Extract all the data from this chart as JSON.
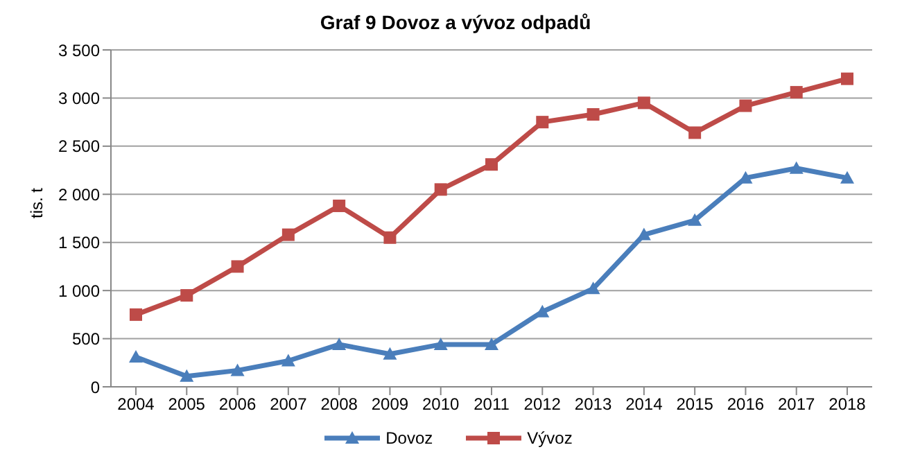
{
  "chart_data": {
    "type": "line",
    "title": "Graf 9 Dovoz a vývoz odpadů",
    "ylabel": "tis. t",
    "categories": [
      "2004",
      "2005",
      "2006",
      "2007",
      "2008",
      "2009",
      "2010",
      "2011",
      "2012",
      "2013",
      "2014",
      "2015",
      "2016",
      "2017",
      "2018"
    ],
    "series": [
      {
        "name": "Dovoz",
        "color": "#4a7ebb",
        "marker": "triangle",
        "values": [
          310,
          110,
          170,
          270,
          440,
          340,
          440,
          440,
          780,
          1020,
          1580,
          1730,
          2170,
          2270,
          2170
        ]
      },
      {
        "name": "Vývoz",
        "color": "#be4b48",
        "marker": "square",
        "values": [
          750,
          950,
          1250,
          1580,
          1880,
          1550,
          2050,
          2310,
          2750,
          2830,
          2950,
          2640,
          2920,
          3060,
          3200
        ]
      }
    ],
    "ylim": [
      0,
      3500
    ],
    "yticks": [
      0,
      500,
      {
        "value": 1000,
        "label": "1 000"
      },
      {
        "value": 1500,
        "label": "1 500"
      },
      {
        "value": 2000,
        "label": "2 000"
      },
      {
        "value": 2500,
        "label": "2 500"
      },
      {
        "value": 3000,
        "label": "3 000"
      },
      {
        "value": 3500,
        "label": "3 500"
      }
    ],
    "grid": "y",
    "legend": "bottom",
    "line_style": "solid"
  }
}
